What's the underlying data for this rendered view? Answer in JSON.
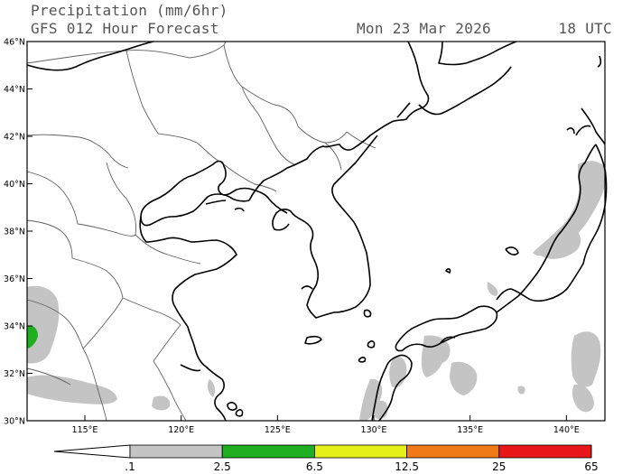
{
  "header": {
    "title": "Precipitation (mm/6hr)",
    "subtitle": "GFS 012 Hour Forecast",
    "valid_date": "Mon 23 Mar 2026",
    "valid_hour": "18 UTC"
  },
  "map": {
    "lat_labels": [
      "46°N",
      "44°N",
      "42°N",
      "40°N",
      "38°N",
      "36°N",
      "34°N",
      "32°N",
      "30°N"
    ],
    "lon_labels": [
      "115°E",
      "120°E",
      "125°E",
      "130°E",
      "135°E",
      "140°E"
    ],
    "lon_values": [
      115,
      120,
      125,
      130,
      135,
      140
    ],
    "lat_values": [
      46,
      44,
      42,
      40,
      38,
      36,
      34,
      32,
      30
    ],
    "extent": {
      "lon_min": 112,
      "lon_max": 142,
      "lat_min": 30,
      "lat_max": 46
    },
    "colors": {
      "land_outline": "#000000",
      "border": "#555555",
      "precip_light": "#c0c0c0",
      "precip_green": "#1fa51f"
    }
  },
  "colorbar": {
    "labels": [
      ".1",
      "2.5",
      "6.5",
      "12.5",
      "25",
      "65"
    ],
    "segments": [
      {
        "from": ".1",
        "to": "2.5",
        "color": "#c4c4c4"
      },
      {
        "from": "2.5",
        "to": "6.5",
        "color": "#1fae1f"
      },
      {
        "from": "6.5",
        "to": "12.5",
        "color": "#e6f018"
      },
      {
        "from": "12.5",
        "to": "25",
        "color": "#f07a18"
      },
      {
        "from": "25",
        "to": "65",
        "color": "#e81818"
      },
      {
        "from": "65",
        "to": "",
        "color": "#a0107a"
      }
    ]
  }
}
